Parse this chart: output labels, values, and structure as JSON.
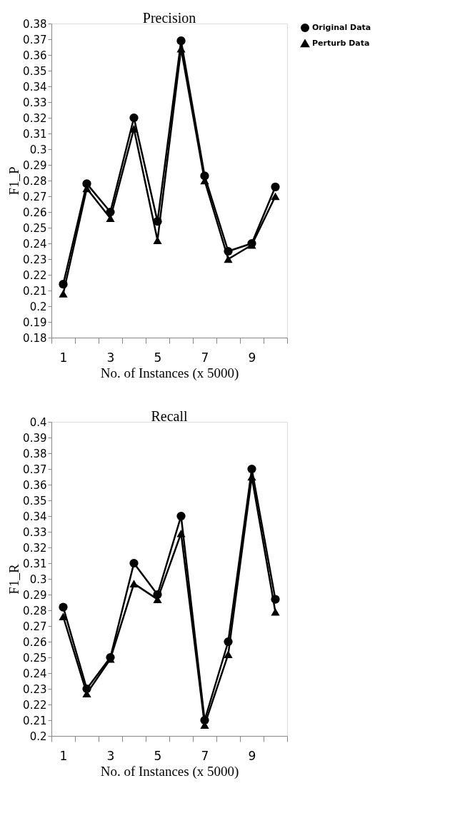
{
  "chart_data": [
    {
      "type": "line",
      "title": "Precision",
      "xlabel": "No. of Instances (x 5000)",
      "ylabel": "F1_P",
      "categories": [
        "1",
        null,
        "3",
        null,
        "5",
        null,
        "7",
        null,
        "9",
        null
      ],
      "series": [
        {
          "name": "Original Data",
          "color": "#000000",
          "marker": "circle",
          "values": [
            0.214,
            0.278,
            0.26,
            0.32,
            0.254,
            0.369,
            0.283,
            0.235,
            0.24,
            0.276
          ]
        },
        {
          "name": "Perturb Data",
          "color": "#000000",
          "marker": "triangle",
          "values": [
            0.208,
            0.275,
            0.256,
            0.313,
            0.242,
            0.364,
            0.28,
            0.23,
            0.239,
            0.27
          ]
        }
      ],
      "ylim": [
        0.18,
        0.38
      ],
      "yticks": [
        0.18,
        0.19,
        0.2,
        0.21,
        0.22,
        0.23,
        0.24,
        0.25,
        0.26,
        0.27,
        0.28,
        0.29,
        0.3,
        0.31,
        0.32,
        0.33,
        0.34,
        0.35,
        0.36,
        0.37,
        0.38
      ],
      "grid": false,
      "legend": "top right",
      "line_style": "solid"
    },
    {
      "type": "line",
      "title": "Recall",
      "xlabel": "No. of Instances (x 5000)",
      "ylabel": "F1_R",
      "categories": [
        "1",
        null,
        "3",
        null,
        "5",
        null,
        "7",
        null,
        "9",
        null
      ],
      "series": [
        {
          "name": "Original Data",
          "color": "#000000",
          "marker": "circle",
          "values": [
            0.282,
            0.23,
            0.25,
            0.31,
            0.29,
            0.34,
            0.21,
            0.26,
            0.37,
            0.287
          ]
        },
        {
          "name": "Perturb Data",
          "color": "#000000",
          "marker": "triangle",
          "values": [
            0.276,
            0.227,
            0.249,
            0.297,
            0.287,
            0.329,
            0.207,
            0.252,
            0.365,
            0.279
          ]
        }
      ],
      "ylim": [
        0.2,
        0.4
      ],
      "yticks": [
        0.2,
        0.21,
        0.22,
        0.23,
        0.24,
        0.25,
        0.26,
        0.27,
        0.28,
        0.29,
        0.3,
        0.31,
        0.32,
        0.33,
        0.34,
        0.35,
        0.36,
        0.37,
        0.38,
        0.39,
        0.4
      ],
      "grid": false,
      "legend": "top right",
      "line_style": "solid"
    }
  ]
}
